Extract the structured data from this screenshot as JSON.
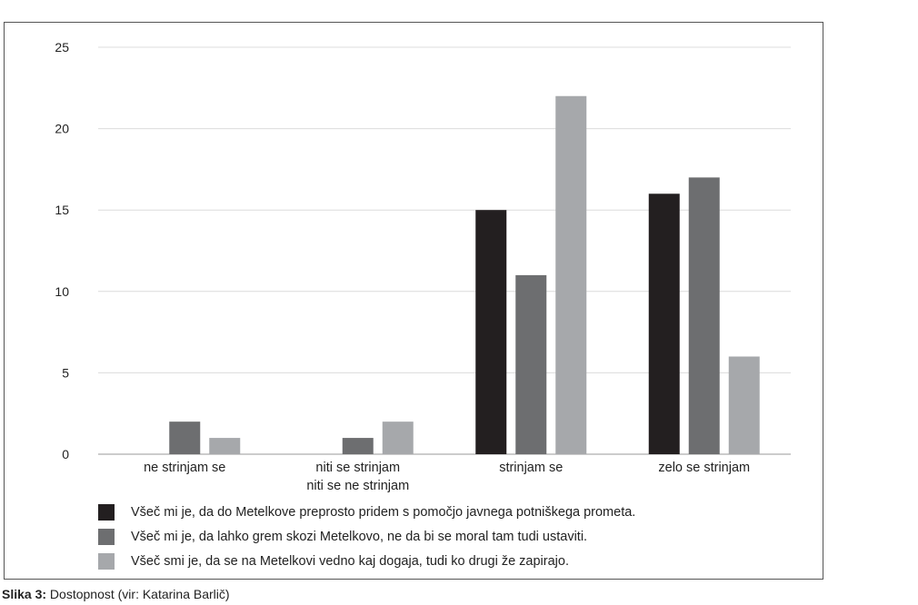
{
  "chart_data": {
    "type": "bar",
    "categories": [
      [
        "ne strinjam se"
      ],
      [
        "niti se strinjam",
        "niti se ne strinjam"
      ],
      [
        "strinjam se"
      ],
      [
        "zelo se strinjam"
      ]
    ],
    "series": [
      {
        "name": "Všeč mi je, da do Metelkove preprosto pridem s pomočjo javnega potniškega prometa.",
        "values": [
          0,
          0,
          15,
          16
        ],
        "color": "#231f20"
      },
      {
        "name": "Všeč mi je, da lahko grem skozi Metelkovo, ne da bi se moral tam tudi ustaviti.",
        "values": [
          2,
          1,
          11,
          17
        ],
        "color": "#6d6e70"
      },
      {
        "name": "Všeč smi je, da se na Metelkovi vedno kaj dogaja, tudi ko drugi že zapirajo.",
        "values": [
          1,
          2,
          22,
          6
        ],
        "color": "#a6a8ab"
      }
    ],
    "ylim": [
      0,
      25
    ],
    "yticks": [
      0,
      5,
      10,
      15,
      20,
      25
    ],
    "grid": true,
    "legend_position": "bottom"
  },
  "caption": {
    "label": "Slika 3:",
    "text": " Dostopnost (vir: Katarina Barlič)"
  }
}
